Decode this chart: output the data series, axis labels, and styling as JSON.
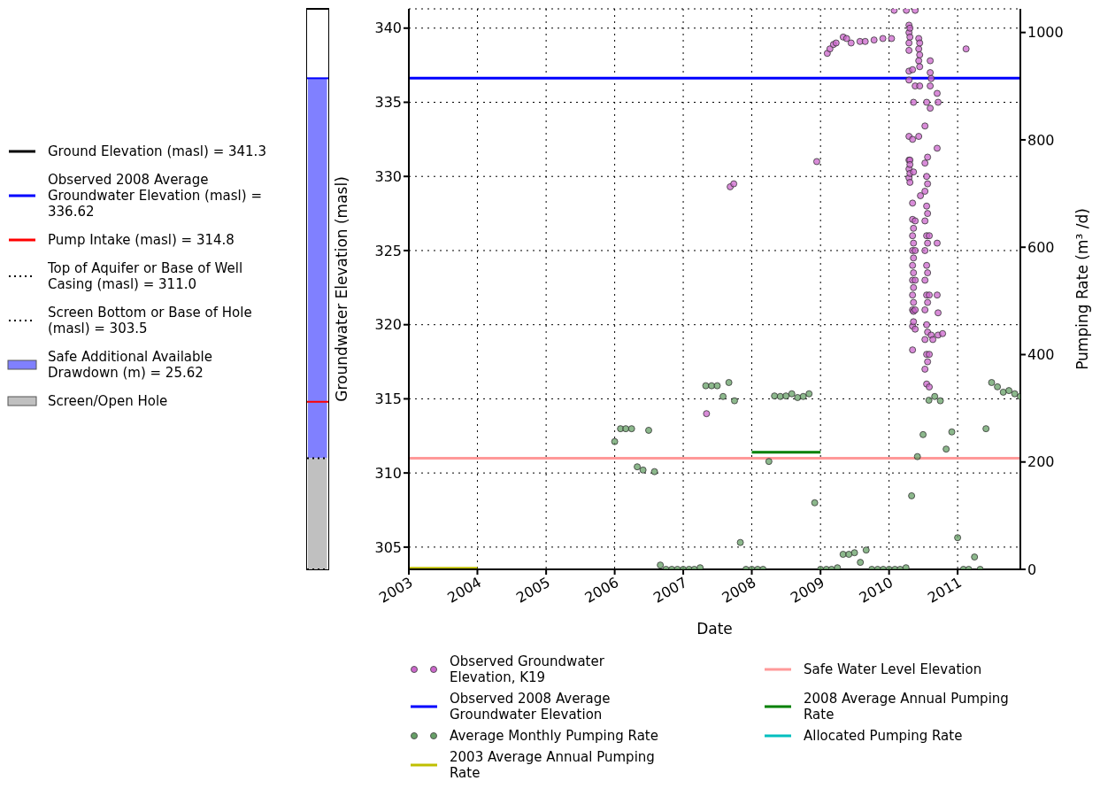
{
  "chart_data": [
    {
      "type": "bar",
      "categories": [
        null
      ],
      "ylim": [
        303.5,
        341.3
      ],
      "tick_labels": false,
      "legend": "left",
      "ref_lines": [
        {
          "axis": "y",
          "value": 341.3,
          "label": "Ground Elevation (masl) = 341.3",
          "color": "#000000"
        },
        {
          "axis": "y",
          "value": 336.62,
          "label": "Observed 2008 Average Groundwater Elevation (masl) = 336.62",
          "color": "#0000ff"
        },
        {
          "axis": "y",
          "value": 314.8,
          "label": "Pump Intake (masl) = 314.8",
          "color": "#ff0000"
        },
        {
          "axis": "y",
          "value": 311.0,
          "label": "Top of Aquifer or Base of Well Casing (masl) = 311.0",
          "color": "#000000",
          "line_style": "dotted"
        },
        {
          "axis": "y",
          "value": 303.5,
          "label": "Screen Bottom or Base of Hole (masl) = 303.5",
          "color": "#000000",
          "line_style": "dotted"
        }
      ],
      "series": [
        {
          "name": "Safe Additional Available Drawdown (m) = 25.62",
          "color": "#8080ff",
          "base": [
            311.0
          ],
          "values": [
            25.62
          ]
        },
        {
          "name": "Screen/Open Hole",
          "color": "#c0c0c0",
          "base": [
            303.5
          ],
          "values": [
            7.5
          ]
        }
      ]
    },
    {
      "type": "scatter",
      "xlabel": "Date",
      "ylabel": "Groundwater Elevation (masl)",
      "y2label": "Pumping Rate (m³ /d)",
      "grid": true,
      "legend": "bottom",
      "xlim": [
        "2003-01-01",
        "2011-12-01"
      ],
      "xticks": [
        "2003",
        "2004",
        "2005",
        "2006",
        "2007",
        "2008",
        "2009",
        "2010",
        "2011"
      ],
      "ylim": [
        303.5,
        341.3
      ],
      "yticks": [
        305,
        310,
        315,
        320,
        325,
        330,
        335,
        340
      ],
      "y2lim": [
        0,
        1044
      ],
      "y2ticks": [
        0,
        200,
        400,
        600,
        800,
        1000
      ],
      "series": [
        {
          "name": "Observed Groundwater Elevation, K19",
          "color": "#cc66cc",
          "marker": "circle",
          "x": [
            "2007-05-05",
            "2007-09-08",
            "2007-09-27",
            "2008-12-12",
            "2009-02-06",
            "2009-02-20",
            "2009-03-11",
            "2009-03-25",
            "2009-05-02",
            "2009-05-20",
            "2009-06-13",
            "2009-07-30",
            "2009-08-27",
            "2009-10-13",
            "2009-11-29",
            "2010-01-14",
            "2010-01-28",
            "2010-04-03",
            "2010-05-20",
            "2010-04-17",
            "2010-04-17",
            "2010-04-17",
            "2010-04-17",
            "2010-04-17",
            "2010-04-17",
            "2010-04-17",
            "2010-04-17",
            "2010-04-17",
            "2010-04-17",
            "2010-04-22",
            "2010-04-22",
            "2010-04-22",
            "2010-04-22",
            "2010-04-22",
            "2010-04-22",
            "2010-05-06",
            "2010-05-06",
            "2010-05-06",
            "2010-05-06",
            "2010-05-06",
            "2010-05-06",
            "2010-05-06",
            "2010-05-06",
            "2010-05-06",
            "2010-05-06",
            "2010-05-06",
            "2010-05-06",
            "2010-05-11",
            "2010-05-11",
            "2010-05-11",
            "2010-05-11",
            "2010-05-11",
            "2010-05-11",
            "2010-05-11",
            "2010-05-11",
            "2010-05-11",
            "2010-05-11",
            "2010-05-20",
            "2010-05-20",
            "2010-05-20",
            "2010-05-20",
            "2010-05-20",
            "2010-05-20",
            "2010-06-08",
            "2010-06-08",
            "2010-06-08",
            "2010-06-08",
            "2010-06-13",
            "2010-06-13",
            "2010-06-13",
            "2010-06-13",
            "2010-06-17",
            "2010-07-11",
            "2010-07-11",
            "2010-07-11",
            "2010-07-11",
            "2010-07-11",
            "2010-07-11",
            "2010-07-11",
            "2010-07-11",
            "2010-07-11",
            "2010-07-20",
            "2010-07-20",
            "2010-07-20",
            "2010-07-20",
            "2010-07-20",
            "2010-07-20",
            "2010-07-20",
            "2010-07-20",
            "2010-07-20",
            "2010-07-25",
            "2010-07-25",
            "2010-07-25",
            "2010-07-25",
            "2010-07-25",
            "2010-07-25",
            "2010-07-25",
            "2010-07-25",
            "2010-08-03",
            "2010-08-03",
            "2010-08-03",
            "2010-08-03",
            "2010-08-08",
            "2010-08-08",
            "2010-08-08",
            "2010-08-08",
            "2010-08-13",
            "2010-08-13",
            "2010-08-22",
            "2010-09-14",
            "2010-09-14",
            "2010-09-14",
            "2010-09-14",
            "2010-09-19",
            "2010-09-19",
            "2010-09-19",
            "2010-10-13",
            "2011-02-15"
          ],
          "values": [
            314.0,
            329.3,
            329.5,
            331.0,
            338.3,
            338.6,
            338.9,
            339.0,
            339.4,
            339.3,
            339.0,
            339.1,
            339.1,
            339.2,
            339.3,
            339.3,
            341.2,
            341.2,
            341.2,
            340.2,
            339.7,
            339.0,
            338.5,
            337.1,
            336.5,
            332.7,
            331.1,
            330.5,
            329.9,
            340.0,
            339.4,
            331.1,
            330.8,
            330.2,
            329.6,
            337.2,
            332.5,
            328.2,
            327.1,
            326.0,
            325.0,
            324.0,
            323.0,
            322.0,
            321.0,
            319.9,
            318.3,
            335.0,
            330.3,
            326.5,
            325.5,
            324.5,
            323.5,
            322.5,
            321.5,
            320.9,
            320.2,
            336.1,
            327.0,
            325.0,
            323.0,
            321.0,
            319.7,
            339.3,
            338.6,
            337.8,
            332.7,
            339.0,
            338.2,
            337.4,
            336.1,
            328.7,
            333.4,
            330.9,
            329.0,
            327.0,
            325.0,
            323.0,
            321.0,
            319.0,
            317.0,
            335.0,
            330.0,
            328.0,
            326.0,
            324.0,
            322.0,
            320.0,
            318.0,
            316.0,
            331.3,
            329.5,
            327.5,
            325.5,
            323.5,
            321.5,
            319.5,
            317.5,
            326.0,
            322.0,
            318.0,
            315.8,
            337.8,
            337.0,
            336.1,
            334.6,
            336.6,
            319.3,
            319.0,
            335.6,
            331.9,
            325.5,
            322.0,
            335.0,
            320.8,
            319.3,
            319.4,
            338.6
          ]
        },
        {
          "name": "Observed 2008 Average Groundwater Elevation",
          "type": "line",
          "color": "#0000ff",
          "x": [
            "2003-01-01",
            "2011-12-01"
          ],
          "values": [
            336.62,
            336.62
          ]
        },
        {
          "name": "Average Monthly Pumping Rate",
          "color": "#66a066",
          "marker": "circle",
          "axis": "y2",
          "x": [
            "2006-01",
            "2006-02",
            "2006-03",
            "2006-04",
            "2006-05",
            "2006-06",
            "2006-07",
            "2006-08",
            "2006-09",
            "2006-10",
            "2006-11",
            "2006-12",
            "2007-01",
            "2007-02",
            "2007-03",
            "2007-04",
            "2007-05",
            "2007-06",
            "2007-07",
            "2007-08",
            "2007-09",
            "2007-10",
            "2007-11",
            "2007-12",
            "2008-01",
            "2008-02",
            "2008-03",
            "2008-04",
            "2008-05",
            "2008-06",
            "2008-07",
            "2008-08",
            "2008-09",
            "2008-10",
            "2008-11",
            "2008-12",
            "2009-01",
            "2009-02",
            "2009-03",
            "2009-04",
            "2009-05",
            "2009-06",
            "2009-07",
            "2009-08",
            "2009-09",
            "2009-10",
            "2009-11",
            "2009-12",
            "2010-01",
            "2010-02",
            "2010-03",
            "2010-04",
            "2010-05",
            "2010-06",
            "2010-07",
            "2010-08",
            "2010-09",
            "2010-10",
            "2010-11",
            "2010-12",
            "2011-01",
            "2011-02",
            "2011-03",
            "2011-04",
            "2011-05",
            "2011-06",
            "2011-07",
            "2011-08",
            "2011-09",
            "2011-10",
            "2011-11",
            "2011-12"
          ],
          "values": [
            238,
            262,
            262,
            262,
            191,
            185,
            259,
            182,
            8,
            0,
            0,
            0,
            0,
            0,
            0,
            3,
            342,
            342,
            342,
            322,
            348,
            314,
            50,
            0,
            0,
            0,
            0,
            201,
            323,
            322,
            323,
            327,
            320,
            322,
            327,
            124,
            0,
            0,
            0,
            3,
            28,
            28,
            31,
            13,
            36,
            0,
            0,
            0,
            0,
            0,
            0,
            3,
            137,
            210,
            251,
            315,
            322,
            314,
            224,
            256,
            59,
            0,
            0,
            23,
            0,
            262,
            348,
            340,
            330,
            333,
            327,
            322
          ]
        },
        {
          "name": "2003 Average Annual Pumping Rate",
          "type": "line",
          "color": "#bfbf00",
          "axis": "y2",
          "x": [
            "2003-01-01",
            "2004-01-01"
          ],
          "values": [
            2,
            2
          ]
        },
        {
          "name": "Safe Water Level Elevation",
          "type": "line",
          "color": "#ff9999",
          "x": [
            "2003-01-01",
            "2011-12-01"
          ],
          "values": [
            311.0,
            311.0
          ]
        },
        {
          "name": "2008 Average Annual Pumping Rate",
          "type": "line",
          "color": "#008000",
          "axis": "y2",
          "x": [
            "2008-01-01",
            "2009-01-01"
          ],
          "values": [
            218,
            218
          ]
        },
        {
          "name": "Allocated Pumping Rate",
          "type": "line",
          "color": "#00bfbf"
        }
      ]
    }
  ]
}
